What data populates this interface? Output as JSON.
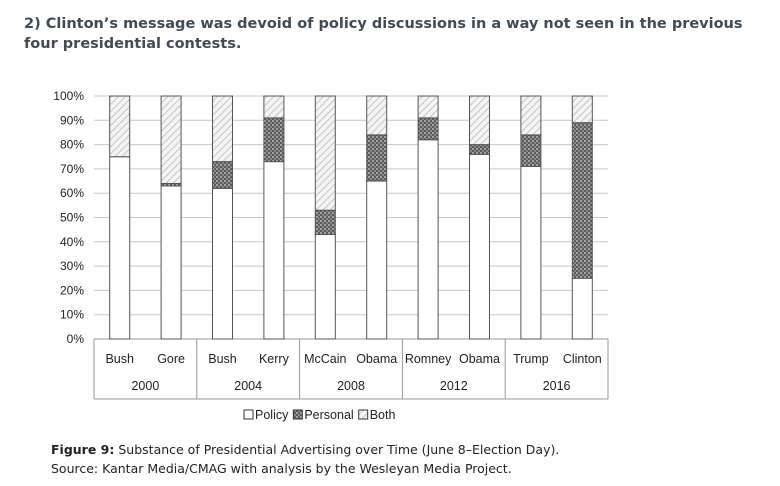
{
  "heading": "2) Clinton’s message was devoid of policy discussions in a way not seen in the previous four presidential contests.",
  "caption": {
    "label": "Figure 9:",
    "title": "Substance of Presidential Advertising over Time (June 8–Election Day).",
    "source": "Source: Kantar Media/CMAG with analysis by the Wesleyan Media Project."
  },
  "chart_data": {
    "type": "bar",
    "stacked": true,
    "categories": [
      "Bush",
      "Gore",
      "Bush",
      "Kerry",
      "McCain",
      "Obama",
      "Romney",
      "Obama",
      "Trump",
      "Clinton"
    ],
    "groups": [
      {
        "label": "2000",
        "members": [
          0,
          1
        ]
      },
      {
        "label": "2004",
        "members": [
          2,
          3
        ]
      },
      {
        "label": "2008",
        "members": [
          4,
          5
        ]
      },
      {
        "label": "2012",
        "members": [
          6,
          7
        ]
      },
      {
        "label": "2016",
        "members": [
          8,
          9
        ]
      }
    ],
    "series": [
      {
        "name": "Policy",
        "values": [
          75,
          63,
          62,
          73,
          43,
          65,
          82,
          76,
          71,
          25
        ]
      },
      {
        "name": "Personal",
        "values": [
          0,
          1,
          11,
          18,
          10,
          19,
          9,
          4,
          13,
          64
        ]
      },
      {
        "name": "Both",
        "values": [
          25,
          36,
          27,
          9,
          47,
          16,
          9,
          20,
          16,
          11
        ]
      }
    ],
    "y_ticks": [
      "0%",
      "10%",
      "20%",
      "30%",
      "40%",
      "50%",
      "60%",
      "70%",
      "80%",
      "90%",
      "100%"
    ],
    "ylim": [
      0,
      100
    ],
    "grid": true,
    "legend_position": "bottom"
  }
}
